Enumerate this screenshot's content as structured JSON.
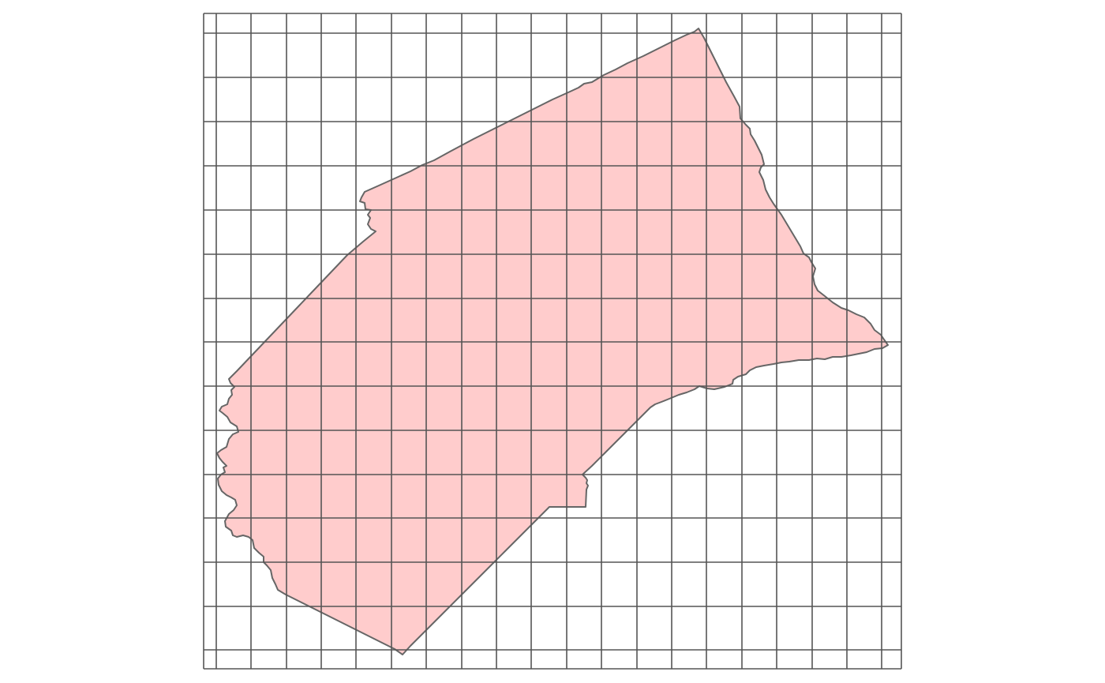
{
  "map": {
    "region_fill": "#FFCCCC",
    "outline_color": "#666666",
    "grid_color": "#555555",
    "background": "#FFFFFF",
    "grid": {
      "columns": 20,
      "rows": 15,
      "cell_shape": "rectangular grid over polygon"
    }
  }
}
